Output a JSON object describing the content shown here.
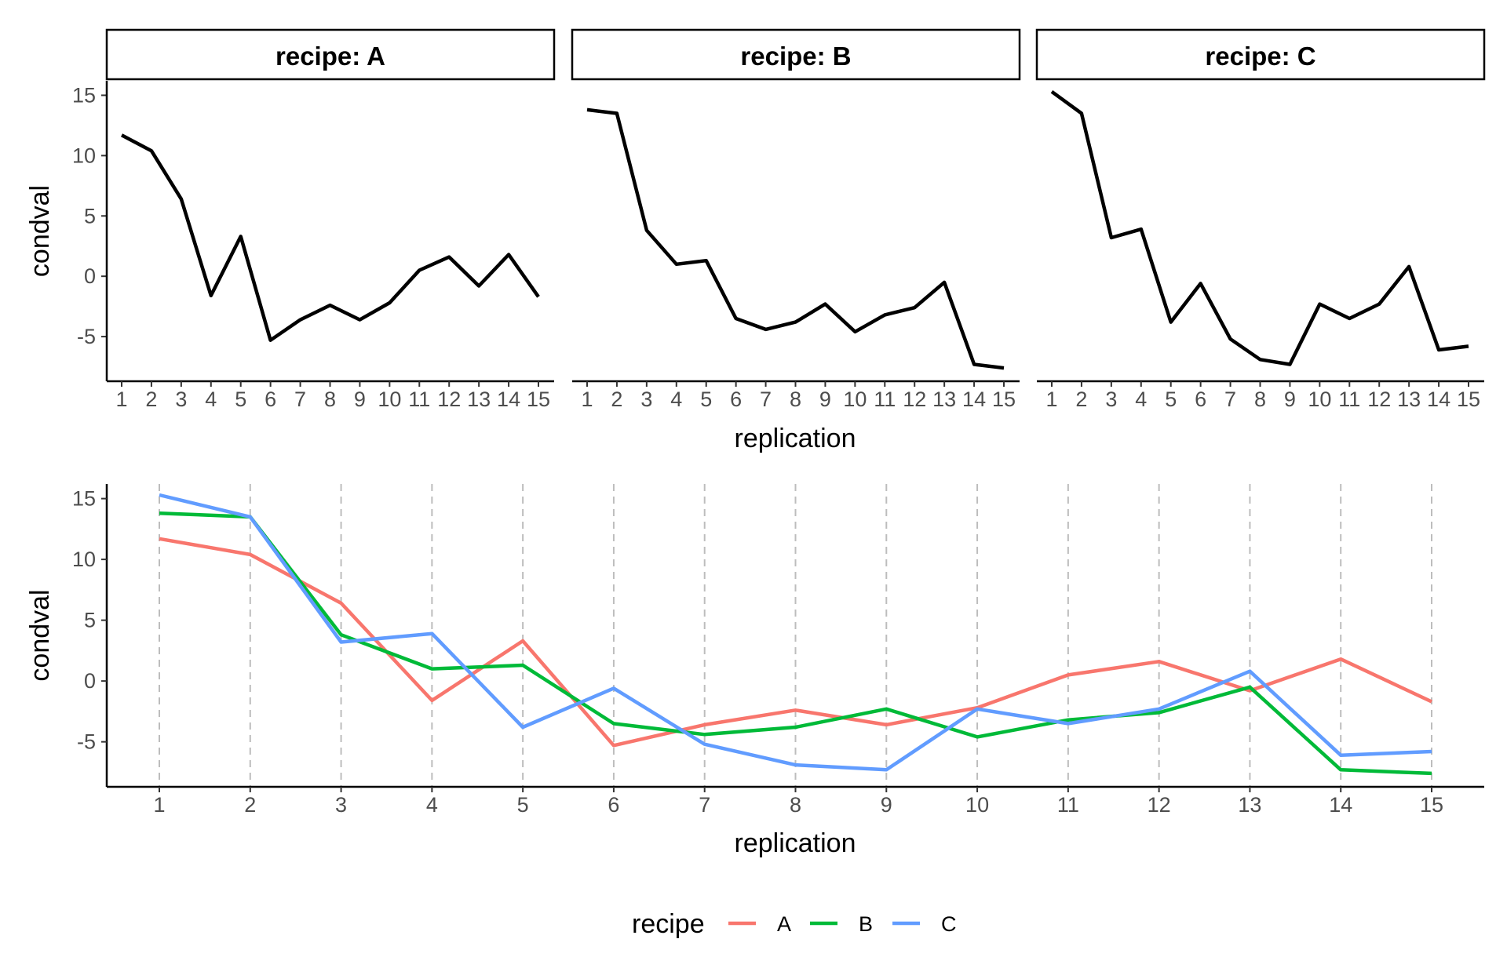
{
  "chart_data": [
    {
      "type": "line",
      "facet_by": "recipe",
      "xlabel": "replication",
      "ylabel": "condval",
      "x": [
        1,
        2,
        3,
        4,
        5,
        6,
        7,
        8,
        9,
        10,
        11,
        12,
        13,
        14,
        15
      ],
      "ylim": [
        -8.7,
        16.2
      ],
      "yticks": [
        15,
        10,
        5,
        0,
        -5
      ],
      "line_color": "#000000",
      "panels": [
        {
          "strip": "recipe: A",
          "values": [
            11.7,
            10.4,
            6.4,
            -1.6,
            3.3,
            -5.3,
            -3.6,
            -2.4,
            -3.6,
            -2.2,
            0.5,
            1.6,
            -0.8,
            1.8,
            -1.7
          ]
        },
        {
          "strip": "recipe: B",
          "values": [
            13.8,
            13.5,
            3.8,
            1.0,
            1.3,
            -3.5,
            -4.4,
            -3.8,
            -2.3,
            -4.6,
            -3.2,
            -2.6,
            -0.5,
            -7.3,
            -7.6
          ]
        },
        {
          "strip": "recipe: C",
          "values": [
            15.3,
            13.5,
            3.2,
            3.9,
            -3.8,
            -0.6,
            -5.2,
            -6.9,
            -7.3,
            -2.3,
            -3.5,
            -2.3,
            0.8,
            -6.1,
            -5.8
          ]
        }
      ]
    },
    {
      "type": "line",
      "xlabel": "replication",
      "ylabel": "condval",
      "x": [
        1,
        2,
        3,
        4,
        5,
        6,
        7,
        8,
        9,
        10,
        11,
        12,
        13,
        14,
        15
      ],
      "ylim": [
        -8.7,
        16.2
      ],
      "yticks": [
        15,
        10,
        5,
        0,
        -5
      ],
      "vertical_gridlines": "dashed",
      "legend": {
        "title": "recipe",
        "position": "bottom"
      },
      "series": [
        {
          "name": "A",
          "color": "#F8766D",
          "values": [
            11.7,
            10.4,
            6.4,
            -1.6,
            3.3,
            -5.3,
            -3.6,
            -2.4,
            -3.6,
            -2.2,
            0.5,
            1.6,
            -0.8,
            1.8,
            -1.7
          ]
        },
        {
          "name": "B",
          "color": "#00BA38",
          "values": [
            13.8,
            13.5,
            3.8,
            1.0,
            1.3,
            -3.5,
            -4.4,
            -3.8,
            -2.3,
            -4.6,
            -3.2,
            -2.6,
            -0.5,
            -7.3,
            -7.6
          ]
        },
        {
          "name": "C",
          "color": "#619CFF",
          "values": [
            15.3,
            13.5,
            3.2,
            3.9,
            -3.8,
            -0.6,
            -5.2,
            -6.9,
            -7.3,
            -2.3,
            -3.5,
            -2.3,
            0.8,
            -6.1,
            -5.8
          ]
        }
      ]
    }
  ]
}
